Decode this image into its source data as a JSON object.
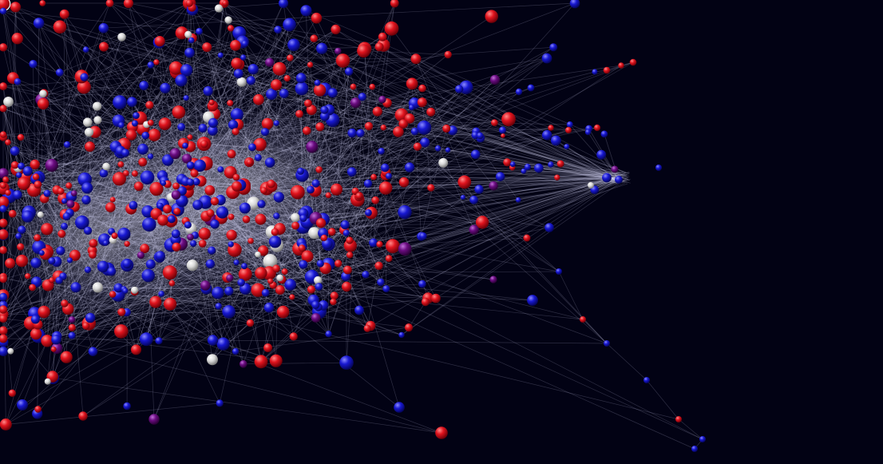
{
  "graph": {
    "background_color": "#020214",
    "edge_color": "#c8c8e6",
    "node_colors": {
      "red": "#d20a14",
      "blue": "#1414c8",
      "purple": "#640a78",
      "white": "#dcdcdc"
    },
    "node_group_counts": {
      "red": 320,
      "blue": 300,
      "purple": 22,
      "white": 28
    },
    "visible_clusters": [
      "dense-core",
      "right-bundle",
      "lower-right-chain",
      "upper-right-chain"
    ]
  }
}
